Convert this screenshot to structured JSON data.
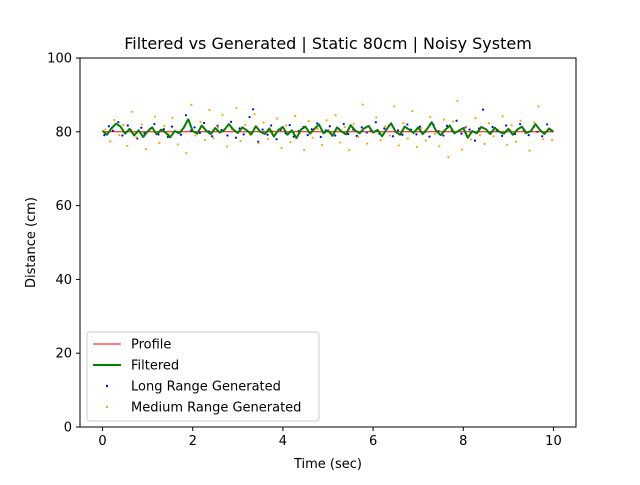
{
  "chart_data": {
    "type": "line",
    "title": "Filtered vs Generated | Static 80cm | Noisy System",
    "xlabel": "Time (sec)",
    "ylabel": "Distance (cm)",
    "xlim": [
      -0.5,
      10.5
    ],
    "ylim": [
      0,
      100
    ],
    "xticks": [
      0,
      2,
      4,
      6,
      8,
      10
    ],
    "yticks": [
      0,
      20,
      40,
      60,
      80,
      100
    ],
    "grid": false,
    "legend_position": "lower-left",
    "series": [
      {
        "name": "Profile",
        "kind": "line",
        "color": "#ff0000",
        "x": [
          0,
          10
        ],
        "y": [
          80,
          80
        ]
      },
      {
        "name": "Filtered",
        "kind": "line",
        "color": "#008000",
        "x": [
          0,
          0.1,
          0.2,
          0.3,
          0.4,
          0.5,
          0.6,
          0.7,
          0.8,
          0.9,
          1.0,
          1.1,
          1.2,
          1.3,
          1.4,
          1.5,
          1.6,
          1.7,
          1.8,
          1.9,
          2.0,
          2.1,
          2.2,
          2.3,
          2.4,
          2.5,
          2.6,
          2.7,
          2.8,
          2.9,
          3.0,
          3.1,
          3.2,
          3.3,
          3.4,
          3.5,
          3.6,
          3.7,
          3.8,
          3.9,
          4.0,
          4.1,
          4.2,
          4.3,
          4.4,
          4.5,
          4.6,
          4.7,
          4.8,
          4.9,
          5.0,
          5.1,
          5.2,
          5.3,
          5.4,
          5.5,
          5.6,
          5.7,
          5.8,
          5.9,
          6.0,
          6.1,
          6.2,
          6.3,
          6.4,
          6.5,
          6.6,
          6.7,
          6.8,
          6.9,
          7.0,
          7.1,
          7.2,
          7.3,
          7.4,
          7.5,
          7.6,
          7.7,
          7.8,
          7.9,
          8.0,
          8.1,
          8.2,
          8.3,
          8.4,
          8.5,
          8.6,
          8.7,
          8.8,
          8.9,
          9.0,
          9.1,
          9.2,
          9.3,
          9.4,
          9.5,
          9.6,
          9.7,
          9.8,
          9.9,
          10.0
        ],
        "y": [
          80.3,
          79.2,
          81.0,
          82.2,
          81.4,
          79.5,
          80.8,
          79.0,
          80.4,
          78.6,
          80.1,
          81.2,
          79.3,
          80.6,
          79.8,
          78.5,
          80.2,
          79.6,
          81.1,
          83.4,
          80.2,
          79.5,
          81.7,
          80.3,
          79.4,
          81.0,
          79.8,
          80.5,
          82.1,
          80.6,
          79.7,
          81.2,
          80.4,
          79.3,
          81.5,
          80.0,
          79.4,
          80.9,
          78.7,
          80.5,
          81.3,
          79.2,
          80.4,
          78.3,
          80.6,
          81.4,
          79.5,
          80.8,
          82.0,
          79.6,
          80.4,
          78.9,
          81.2,
          80.1,
          79.3,
          81.8,
          80.4,
          79.6,
          80.9,
          81.6,
          79.8,
          80.5,
          78.8,
          80.7,
          82.3,
          80.0,
          79.2,
          81.4,
          80.6,
          79.7,
          81.2,
          79.4,
          80.8,
          82.6,
          80.2,
          79.1,
          80.5,
          81.7,
          79.6,
          80.3,
          81.0,
          78.4,
          80.2,
          79.6,
          81.3,
          80.7,
          79.4,
          81.1,
          80.0,
          79.5,
          80.8,
          79.2,
          80.6,
          81.4,
          79.7,
          80.2,
          82.1,
          80.5,
          79.4,
          80.9,
          80.0
        ]
      },
      {
        "name": "Long Range Generated",
        "kind": "scatter",
        "color": "#0000ff",
        "x": [
          0.04,
          0.14,
          0.23,
          0.35,
          0.44,
          0.56,
          0.63,
          0.77,
          0.86,
          0.93,
          1.05,
          1.15,
          1.24,
          1.36,
          1.45,
          1.54,
          1.66,
          1.74,
          1.85,
          1.96,
          2.04,
          2.16,
          2.25,
          2.36,
          2.43,
          2.55,
          2.64,
          2.77,
          2.85,
          2.96,
          3.04,
          3.13,
          3.26,
          3.34,
          3.45,
          3.55,
          3.66,
          3.74,
          3.86,
          3.95,
          4.06,
          4.15,
          4.24,
          4.35,
          4.46,
          4.55,
          4.64,
          4.76,
          4.84,
          4.95,
          5.04,
          5.16,
          5.24,
          5.35,
          5.45,
          5.56,
          5.64,
          5.75,
          5.86,
          5.95,
          6.06,
          6.14,
          6.25,
          6.36,
          6.44,
          6.55,
          6.65,
          6.76,
          6.84,
          6.96,
          7.04,
          7.16,
          7.25,
          7.34,
          7.45,
          7.56,
          7.64,
          7.75,
          7.85,
          7.96,
          8.05,
          8.14,
          8.26,
          8.35,
          8.44,
          8.56,
          8.65,
          8.74,
          8.86,
          8.95,
          9.04,
          9.15,
          9.26,
          9.34,
          9.45,
          9.56,
          9.64,
          9.75,
          9.86,
          9.95
        ],
        "y": [
          79.1,
          81.5,
          80.3,
          82.6,
          79.0,
          81.7,
          80.4,
          78.2,
          81.1,
          79.6,
          80.8,
          82.1,
          79.3,
          80.7,
          78.6,
          81.4,
          80.0,
          79.2,
          84.5,
          80.3,
          81.2,
          79.7,
          82.4,
          80.1,
          78.8,
          81.6,
          80.5,
          79.0,
          82.7,
          78.4,
          80.9,
          79.3,
          84.0,
          86.1,
          77.3,
          80.6,
          79.2,
          81.7,
          78.0,
          80.5,
          79.6,
          81.8,
          78.7,
          80.2,
          81.3,
          79.1,
          80.7,
          82.3,
          78.6,
          80.4,
          81.5,
          79.0,
          80.8,
          82.1,
          79.4,
          80.6,
          78.9,
          81.2,
          79.8,
          80.3,
          82.6,
          79.5,
          80.9,
          81.7,
          78.8,
          80.4,
          79.2,
          82.0,
          80.6,
          79.3,
          81.4,
          80.0,
          78.7,
          81.9,
          80.2,
          79.0,
          81.6,
          80.4,
          83.0,
          79.5,
          81.2,
          80.6,
          77.6,
          80.9,
          86.0,
          79.8,
          81.3,
          80.2,
          78.9,
          81.7,
          80.3,
          79.4,
          82.1,
          80.5,
          79.1,
          81.3,
          80.0,
          78.8,
          82.0,
          80.4
        ]
      },
      {
        "name": "Medium Range Generated",
        "kind": "scatter",
        "color": "#ffa500",
        "x": [
          0.06,
          0.17,
          0.26,
          0.37,
          0.46,
          0.55,
          0.66,
          0.75,
          0.87,
          0.96,
          1.06,
          1.16,
          1.26,
          1.37,
          1.47,
          1.55,
          1.67,
          1.76,
          1.86,
          1.97,
          2.06,
          2.17,
          2.27,
          2.37,
          2.46,
          2.56,
          2.66,
          2.76,
          2.87,
          2.97,
          3.06,
          3.16,
          3.27,
          3.37,
          3.46,
          3.57,
          3.67,
          3.76,
          3.87,
          3.97,
          4.07,
          4.17,
          4.27,
          4.37,
          4.47,
          4.57,
          4.66,
          4.77,
          4.87,
          4.97,
          5.07,
          5.17,
          5.27,
          5.37,
          5.47,
          5.57,
          5.67,
          5.77,
          5.87,
          5.97,
          6.07,
          6.17,
          6.27,
          6.37,
          6.47,
          6.57,
          6.67,
          6.77,
          6.87,
          6.97,
          7.07,
          7.17,
          7.27,
          7.37,
          7.47,
          7.57,
          7.67,
          7.77,
          7.87,
          7.97,
          8.07,
          8.17,
          8.27,
          8.37,
          8.47,
          8.57,
          8.67,
          8.77,
          8.87,
          8.97,
          9.07,
          9.17,
          9.27,
          9.37,
          9.47,
          9.57,
          9.67,
          9.77,
          9.87,
          9.97
        ],
        "y": [
          80.6,
          77.4,
          83.2,
          79.1,
          81.8,
          76.2,
          85.4,
          78.5,
          82.0,
          75.3,
          80.9,
          84.1,
          77.0,
          81.6,
          79.3,
          83.8,
          76.6,
          80.4,
          74.2,
          87.3,
          79.0,
          82.7,
          77.8,
          85.9,
          78.3,
          81.2,
          84.6,
          76.0,
          80.7,
          86.4,
          77.5,
          81.9,
          79.2,
          84.8,
          76.9,
          82.5,
          78.1,
          80.3,
          83.6,
          75.6,
          81.7,
          77.2,
          84.3,
          79.5,
          75.1,
          82.9,
          78.4,
          80.8,
          76.4,
          83.1,
          79.7,
          84.5,
          77.1,
          81.3,
          75.0,
          82.2,
          78.6,
          87.4,
          76.8,
          80.2,
          83.9,
          77.7,
          81.5,
          79.0,
          86.9,
          76.3,
          82.4,
          78.2,
          85.6,
          75.9,
          81.0,
          77.6,
          84.0,
          79.4,
          76.1,
          83.3,
          73.1,
          82.8,
          88.4,
          75.2,
          81.4,
          77.9,
          83.7,
          79.1,
          76.7,
          82.3,
          78.8,
          80.5,
          84.2,
          76.5,
          81.8,
          77.3,
          83.0,
          79.6,
          74.9,
          82.6,
          86.9,
          78.0,
          80.1,
          77.7
        ]
      }
    ]
  }
}
